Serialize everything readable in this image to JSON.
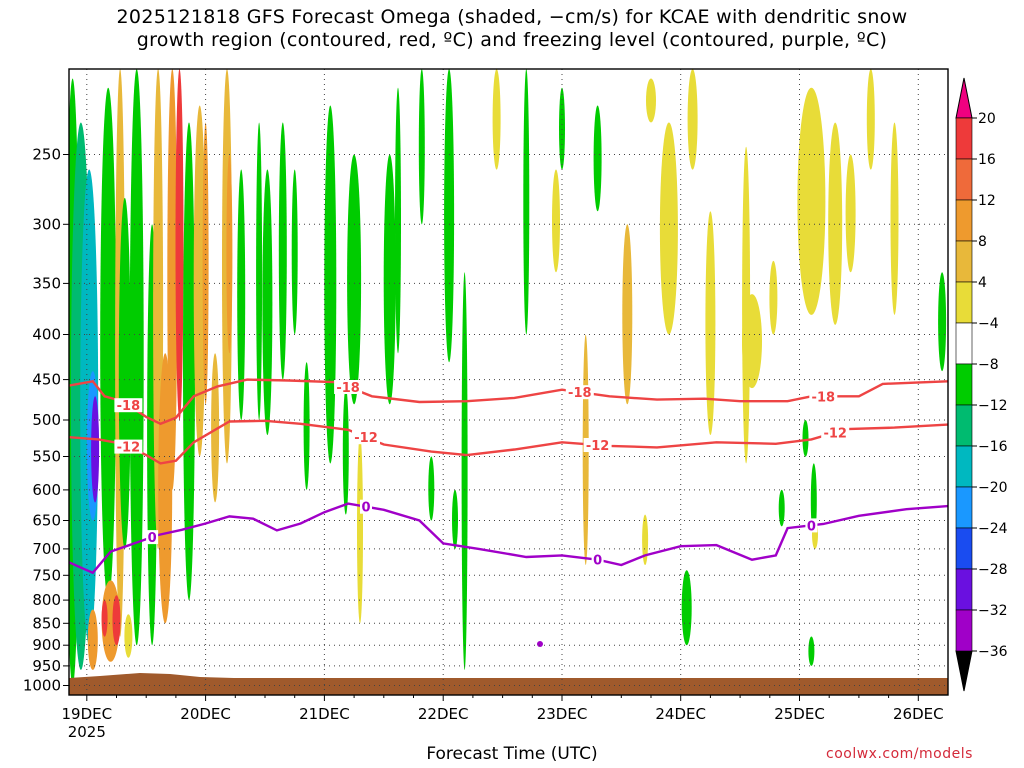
{
  "title_line1": "2025121818 GFS Forecast Omega (shaded, −cm/s) for KCAE with dendritic snow",
  "title_line2": "growth region (contoured, red, ºC) and freezing level (contoured, purple, ºC)",
  "credit": "coolwx.com/models",
  "chart_data": {
    "type": "time-height cross-section",
    "title": "2025121818 GFS Forecast Omega (shaded, −cm/s) for KCAE with dendritic snow growth region (contoured, red, ºC) and freezing level (contoured, purple, ºC)",
    "xlabel": "Forecast Time (UTC)",
    "ylabel": "",
    "x_ticks": [
      "19DEC",
      "20DEC",
      "21DEC",
      "22DEC",
      "23DEC",
      "24DEC",
      "25DEC",
      "26DEC"
    ],
    "x_year": "2025",
    "x_range_days": [
      -0.15,
      7.25
    ],
    "y_ticks": [
      250,
      300,
      350,
      400,
      450,
      500,
      550,
      600,
      650,
      700,
      750,
      800,
      850,
      900,
      950,
      1000
    ],
    "y_range_hpa": [
      200,
      1025
    ],
    "y_scale": "log-pressure",
    "grid": true,
    "colorbar": {
      "labels": [
        "20",
        "16",
        "12",
        "8",
        "4",
        "−4",
        "−8",
        "−12",
        "−16",
        "−20",
        "−24",
        "−28",
        "−32",
        "−36"
      ],
      "bins": [
        {
          "range": ">20",
          "color": "#f00080"
        },
        {
          "range": "16 to 20",
          "color": "#ee3a3a"
        },
        {
          "range": "12 to 16",
          "color": "#ef6a3a"
        },
        {
          "range": "8 to 12",
          "color": "#ee9a2e"
        },
        {
          "range": "4 to 8",
          "color": "#e8b83a"
        },
        {
          "range": "0 to 4",
          "color": "#e8dc38"
        },
        {
          "range": "-4 to 4",
          "color": "#ffffff"
        },
        {
          "range": "-8 to -4",
          "color": "#00cc00"
        },
        {
          "range": "-12 to -8",
          "color": "#00bb70"
        },
        {
          "range": "-16 to -12",
          "color": "#00b8c0"
        },
        {
          "range": "-20 to -16",
          "color": "#1a98ff"
        },
        {
          "range": "-24 to -20",
          "color": "#1a4cf0"
        },
        {
          "range": "-28 to -24",
          "color": "#6a10e0"
        },
        {
          "range": "-32 to -28",
          "color": "#a000c8"
        },
        {
          "range": "-36 to -32",
          "color": "#a0a0a0"
        },
        {
          "range": "<-36",
          "color": "#000000"
        }
      ]
    },
    "contours": [
      {
        "label": "-18",
        "color": "#ee4444",
        "points": [
          [
            -0.15,
            457
          ],
          [
            0.05,
            452
          ],
          [
            0.15,
            470
          ],
          [
            0.3,
            476
          ],
          [
            0.5,
            496
          ],
          [
            0.62,
            505
          ],
          [
            0.75,
            497
          ],
          [
            0.9,
            470
          ],
          [
            1.1,
            458
          ],
          [
            1.35,
            450
          ],
          [
            1.7,
            451
          ],
          [
            2.1,
            453
          ],
          [
            2.4,
            470
          ],
          [
            2.8,
            477
          ],
          [
            3.2,
            476
          ],
          [
            3.6,
            472
          ],
          [
            4.0,
            462
          ],
          [
            4.4,
            470
          ],
          [
            4.8,
            474
          ],
          [
            5.2,
            473
          ],
          [
            5.5,
            476
          ],
          [
            5.9,
            476
          ],
          [
            6.1,
            470
          ],
          [
            6.5,
            470
          ],
          [
            6.7,
            455
          ],
          [
            7.25,
            452
          ]
        ],
        "labels_at_days": [
          0.35,
          2.2,
          4.15,
          6.2
        ]
      },
      {
        "label": "-12",
        "color": "#ee4444",
        "points": [
          [
            -0.15,
            523
          ],
          [
            0.1,
            526
          ],
          [
            0.3,
            532
          ],
          [
            0.5,
            548
          ],
          [
            0.62,
            560
          ],
          [
            0.75,
            556
          ],
          [
            0.9,
            530
          ],
          [
            1.2,
            502
          ],
          [
            1.5,
            501
          ],
          [
            1.8,
            505
          ],
          [
            2.2,
            513
          ],
          [
            2.5,
            533
          ],
          [
            2.9,
            543
          ],
          [
            3.2,
            548
          ],
          [
            3.6,
            540
          ],
          [
            4.0,
            530
          ],
          [
            4.4,
            535
          ],
          [
            4.8,
            537
          ],
          [
            5.3,
            530
          ],
          [
            5.8,
            532
          ],
          [
            6.1,
            526
          ],
          [
            6.4,
            512
          ],
          [
            6.8,
            510
          ],
          [
            7.25,
            506
          ]
        ],
        "labels_at_days": [
          0.35,
          2.35,
          4.3,
          6.3
        ]
      },
      {
        "label": "0",
        "color": "#a000c8",
        "points": [
          [
            -0.15,
            725
          ],
          [
            0.05,
            745
          ],
          [
            0.2,
            705
          ],
          [
            0.4,
            690
          ],
          [
            0.6,
            675
          ],
          [
            0.8,
            666
          ],
          [
            1.0,
            655
          ],
          [
            1.2,
            643
          ],
          [
            1.4,
            647
          ],
          [
            1.6,
            667
          ],
          [
            1.8,
            655
          ],
          [
            2.0,
            636
          ],
          [
            2.2,
            622
          ],
          [
            2.5,
            632
          ],
          [
            2.8,
            650
          ],
          [
            3.0,
            690
          ],
          [
            3.3,
            700
          ],
          [
            3.7,
            715
          ],
          [
            4.0,
            712
          ],
          [
            4.3,
            720
          ],
          [
            4.5,
            730
          ],
          [
            4.7,
            712
          ],
          [
            5.0,
            695
          ],
          [
            5.3,
            693
          ],
          [
            5.6,
            720
          ],
          [
            5.8,
            712
          ],
          [
            5.9,
            663
          ],
          [
            6.2,
            656
          ],
          [
            6.5,
            642
          ],
          [
            6.9,
            631
          ],
          [
            7.25,
            626
          ]
        ],
        "labels_at_days": [
          0.55,
          2.35,
          4.3,
          6.1
        ]
      }
    ]
  }
}
